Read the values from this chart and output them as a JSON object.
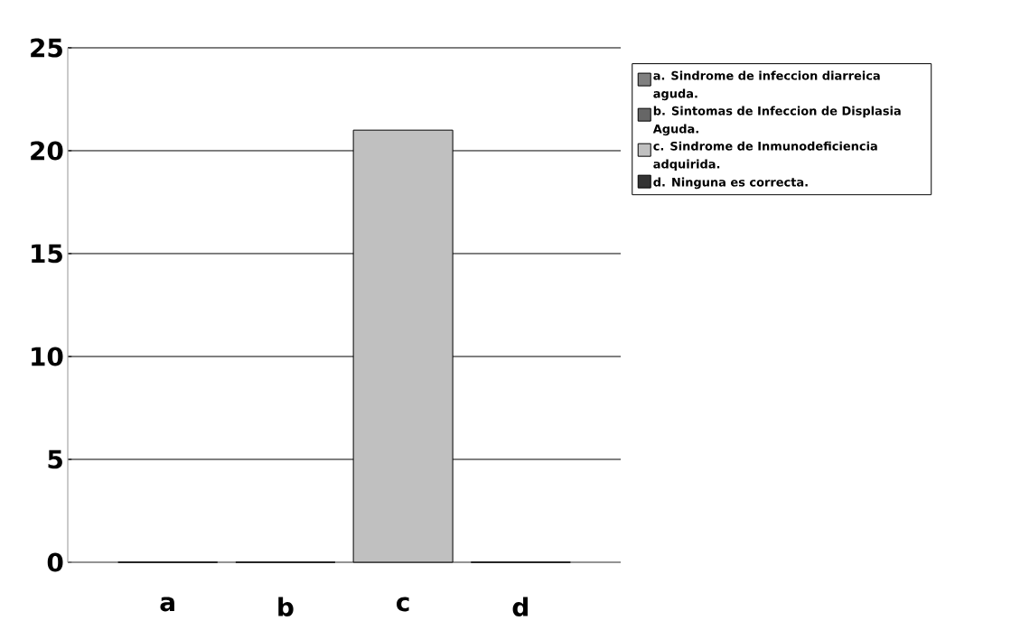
{
  "chart_data": {
    "type": "bar",
    "categories": [
      "a",
      "b",
      "c",
      "d"
    ],
    "series": [
      {
        "name": "a.  Sindrome de infeccion diarreica aguda.",
        "color": "#808080",
        "values": [
          0,
          null,
          null,
          null
        ]
      },
      {
        "name": "b. Sintomas de Infeccion de Displasia Aguda.",
        "color": "#666666",
        "values": [
          null,
          0,
          null,
          null
        ]
      },
      {
        "name": "c.  Sindrome de Inmunodeficiencia adquirida.",
        "color": "#c0c0c0",
        "values": [
          null,
          null,
          21,
          null
        ]
      },
      {
        "name": "d.  Ninguna es correcta.",
        "color": "#333333",
        "values": [
          null,
          null,
          null,
          0
        ]
      }
    ],
    "ylim": [
      0,
      25
    ],
    "yticks": [
      0,
      5,
      10,
      15,
      20,
      25
    ],
    "grid": "y",
    "legend": "right"
  }
}
